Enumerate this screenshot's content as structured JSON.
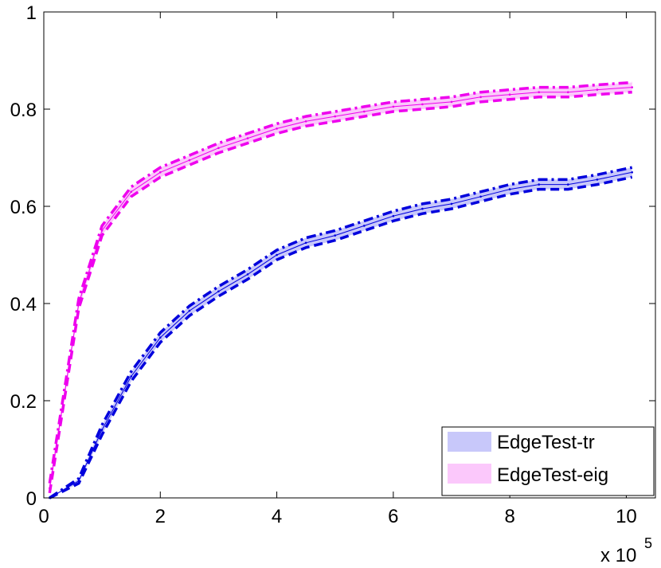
{
  "chart_data": {
    "type": "area",
    "title": "",
    "xlabel": "",
    "ylabel": "",
    "x_exponent_label": "x 10",
    "x_exponent_value": "5",
    "xlim": [
      0,
      10.5
    ],
    "ylim": [
      0,
      1
    ],
    "x_ticks": [
      0,
      2,
      4,
      6,
      8,
      10
    ],
    "y_ticks": [
      0,
      0.2,
      0.4,
      0.6,
      0.8,
      1
    ],
    "x_tick_labels": [
      "0",
      "2",
      "4",
      "6",
      "8",
      "10"
    ],
    "y_tick_labels": [
      "0",
      "0.2",
      "0.4",
      "0.6",
      "0.8",
      "1"
    ],
    "grid": false,
    "legend_position": "bottom-right",
    "x": [
      0.1,
      0.6,
      1.0,
      1.5,
      2.0,
      2.5,
      3.0,
      3.5,
      4.0,
      4.5,
      5.0,
      5.5,
      6.0,
      6.5,
      7.0,
      7.5,
      8.0,
      8.5,
      9.0,
      9.5,
      10.1
    ],
    "series": [
      {
        "name": "EdgeTest-tr",
        "color": "#0000dd",
        "fill": "#c8c8fa",
        "values": [
          0.0,
          0.035,
          0.14,
          0.25,
          0.33,
          0.385,
          0.425,
          0.46,
          0.5,
          0.525,
          0.54,
          0.56,
          0.58,
          0.595,
          0.605,
          0.62,
          0.635,
          0.645,
          0.645,
          0.655,
          0.67
        ],
        "upper": [
          0.0,
          0.04,
          0.15,
          0.26,
          0.34,
          0.395,
          0.435,
          0.47,
          0.51,
          0.535,
          0.55,
          0.57,
          0.59,
          0.605,
          0.615,
          0.63,
          0.645,
          0.655,
          0.655,
          0.665,
          0.68
        ],
        "lower": [
          0.0,
          0.03,
          0.13,
          0.24,
          0.32,
          0.375,
          0.415,
          0.45,
          0.49,
          0.515,
          0.53,
          0.55,
          0.57,
          0.585,
          0.595,
          0.61,
          0.625,
          0.635,
          0.635,
          0.645,
          0.66
        ]
      },
      {
        "name": "EdgeTest-eig",
        "color": "#ee00ee",
        "fill": "#fbc8fb",
        "values": [
          0.02,
          0.4,
          0.55,
          0.63,
          0.67,
          0.695,
          0.72,
          0.74,
          0.76,
          0.775,
          0.785,
          0.795,
          0.805,
          0.81,
          0.815,
          0.825,
          0.83,
          0.835,
          0.835,
          0.84,
          0.845
        ],
        "upper": [
          0.03,
          0.41,
          0.56,
          0.64,
          0.68,
          0.705,
          0.73,
          0.75,
          0.77,
          0.785,
          0.795,
          0.805,
          0.815,
          0.82,
          0.825,
          0.835,
          0.84,
          0.845,
          0.845,
          0.85,
          0.855
        ],
        "lower": [
          0.01,
          0.39,
          0.54,
          0.62,
          0.66,
          0.685,
          0.71,
          0.73,
          0.75,
          0.765,
          0.775,
          0.785,
          0.795,
          0.8,
          0.805,
          0.815,
          0.82,
          0.825,
          0.825,
          0.83,
          0.835
        ]
      }
    ]
  }
}
